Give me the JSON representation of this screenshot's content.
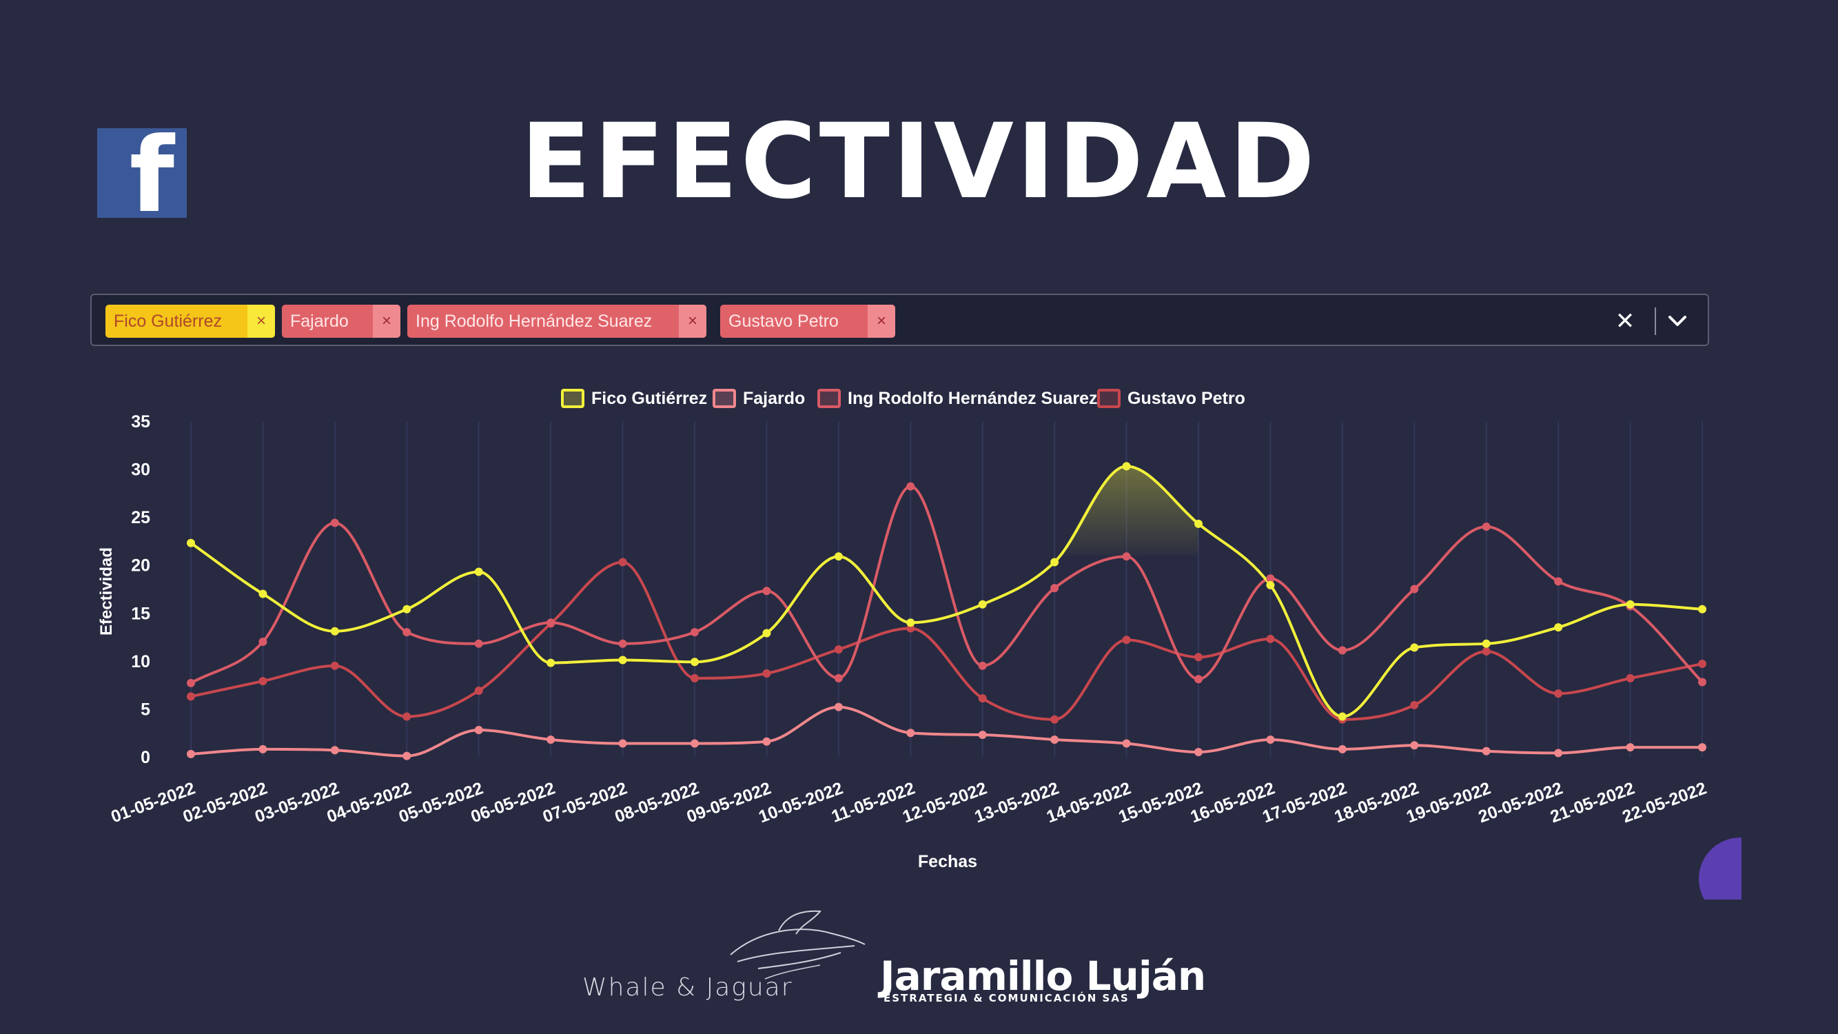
{
  "header": {
    "title": "EFECTIVIDAD",
    "logo_icon": "facebook-icon",
    "logo_letter": "f"
  },
  "filter": {
    "chips": [
      {
        "label": "Fico Gutiérrez",
        "color": "yellow"
      },
      {
        "label": "Fajardo",
        "color": "red"
      },
      {
        "label": "Ing Rodolfo Hernández Suarez",
        "color": "red"
      },
      {
        "label": "Gustavo Petro",
        "color": "red"
      }
    ],
    "remove_symbol": "×",
    "clear_symbol": "✕",
    "clear_icon": "close-icon",
    "dropdown_icon": "chevron-down-icon"
  },
  "footer": {
    "brand1": "Whale & Jaguar",
    "brand2_main": "Jaramillo Luján",
    "brand2_sub": "ESTRATEGIA & COMUNICACIÓN SAS"
  },
  "colors": {
    "background": "#272a41",
    "fico": "#f2f03a",
    "fajardo": "#f0878c",
    "rodolfo": "#d95a66",
    "petro": "#c8474e"
  },
  "chart_data": {
    "type": "line",
    "xlabel": "Fechas",
    "ylabel": "Efectividad",
    "ylim": [
      0,
      35
    ],
    "yticks": [
      0,
      5,
      10,
      15,
      20,
      25,
      30,
      35
    ],
    "grid": "vertical",
    "legend": "top-center",
    "categories": [
      "01-05-2022",
      "02-05-2022",
      "03-05-2022",
      "04-05-2022",
      "05-05-2022",
      "06-05-2022",
      "07-05-2022",
      "08-05-2022",
      "09-05-2022",
      "10-05-2022",
      "11-05-2022",
      "12-05-2022",
      "13-05-2022",
      "14-05-2022",
      "15-05-2022",
      "16-05-2022",
      "17-05-2022",
      "18-05-2022",
      "19-05-2022",
      "20-05-2022",
      "21-05-2022",
      "22-05-2022"
    ],
    "series": [
      {
        "name": "Fico Gutiérrez",
        "color": "#f2f03a",
        "values": [
          22.3,
          17.0,
          13.1,
          15.4,
          19.3,
          9.8,
          10.1,
          9.9,
          12.9,
          20.9,
          14.0,
          15.9,
          20.3,
          30.3,
          24.3,
          17.9,
          4.2,
          11.4,
          11.8,
          13.5,
          15.9,
          15.4
        ]
      },
      {
        "name": "Fajardo",
        "color": "#f0878c",
        "values": [
          0.3,
          0.8,
          0.7,
          0.1,
          2.8,
          1.8,
          1.4,
          1.4,
          1.6,
          5.2,
          2.5,
          2.3,
          1.8,
          1.4,
          0.5,
          1.8,
          0.8,
          1.2,
          0.6,
          0.4,
          1.0,
          1.0
        ]
      },
      {
        "name": "Ing Rodolfo Hernández Suarez",
        "color": "#d95a66",
        "values": [
          7.7,
          12.0,
          24.4,
          13.0,
          11.8,
          14.0,
          11.8,
          13.0,
          17.3,
          8.2,
          28.2,
          9.5,
          17.6,
          20.9,
          8.1,
          18.6,
          11.1,
          17.5,
          24.0,
          18.3,
          15.7,
          7.8
        ]
      },
      {
        "name": "Gustavo Petro",
        "color": "#c8474e",
        "values": [
          6.3,
          7.9,
          9.5,
          4.2,
          6.9,
          13.9,
          20.3,
          8.2,
          8.7,
          11.2,
          13.4,
          6.1,
          3.9,
          12.2,
          10.4,
          12.3,
          3.9,
          5.4,
          11.0,
          6.6,
          8.2,
          9.7
        ]
      }
    ]
  }
}
